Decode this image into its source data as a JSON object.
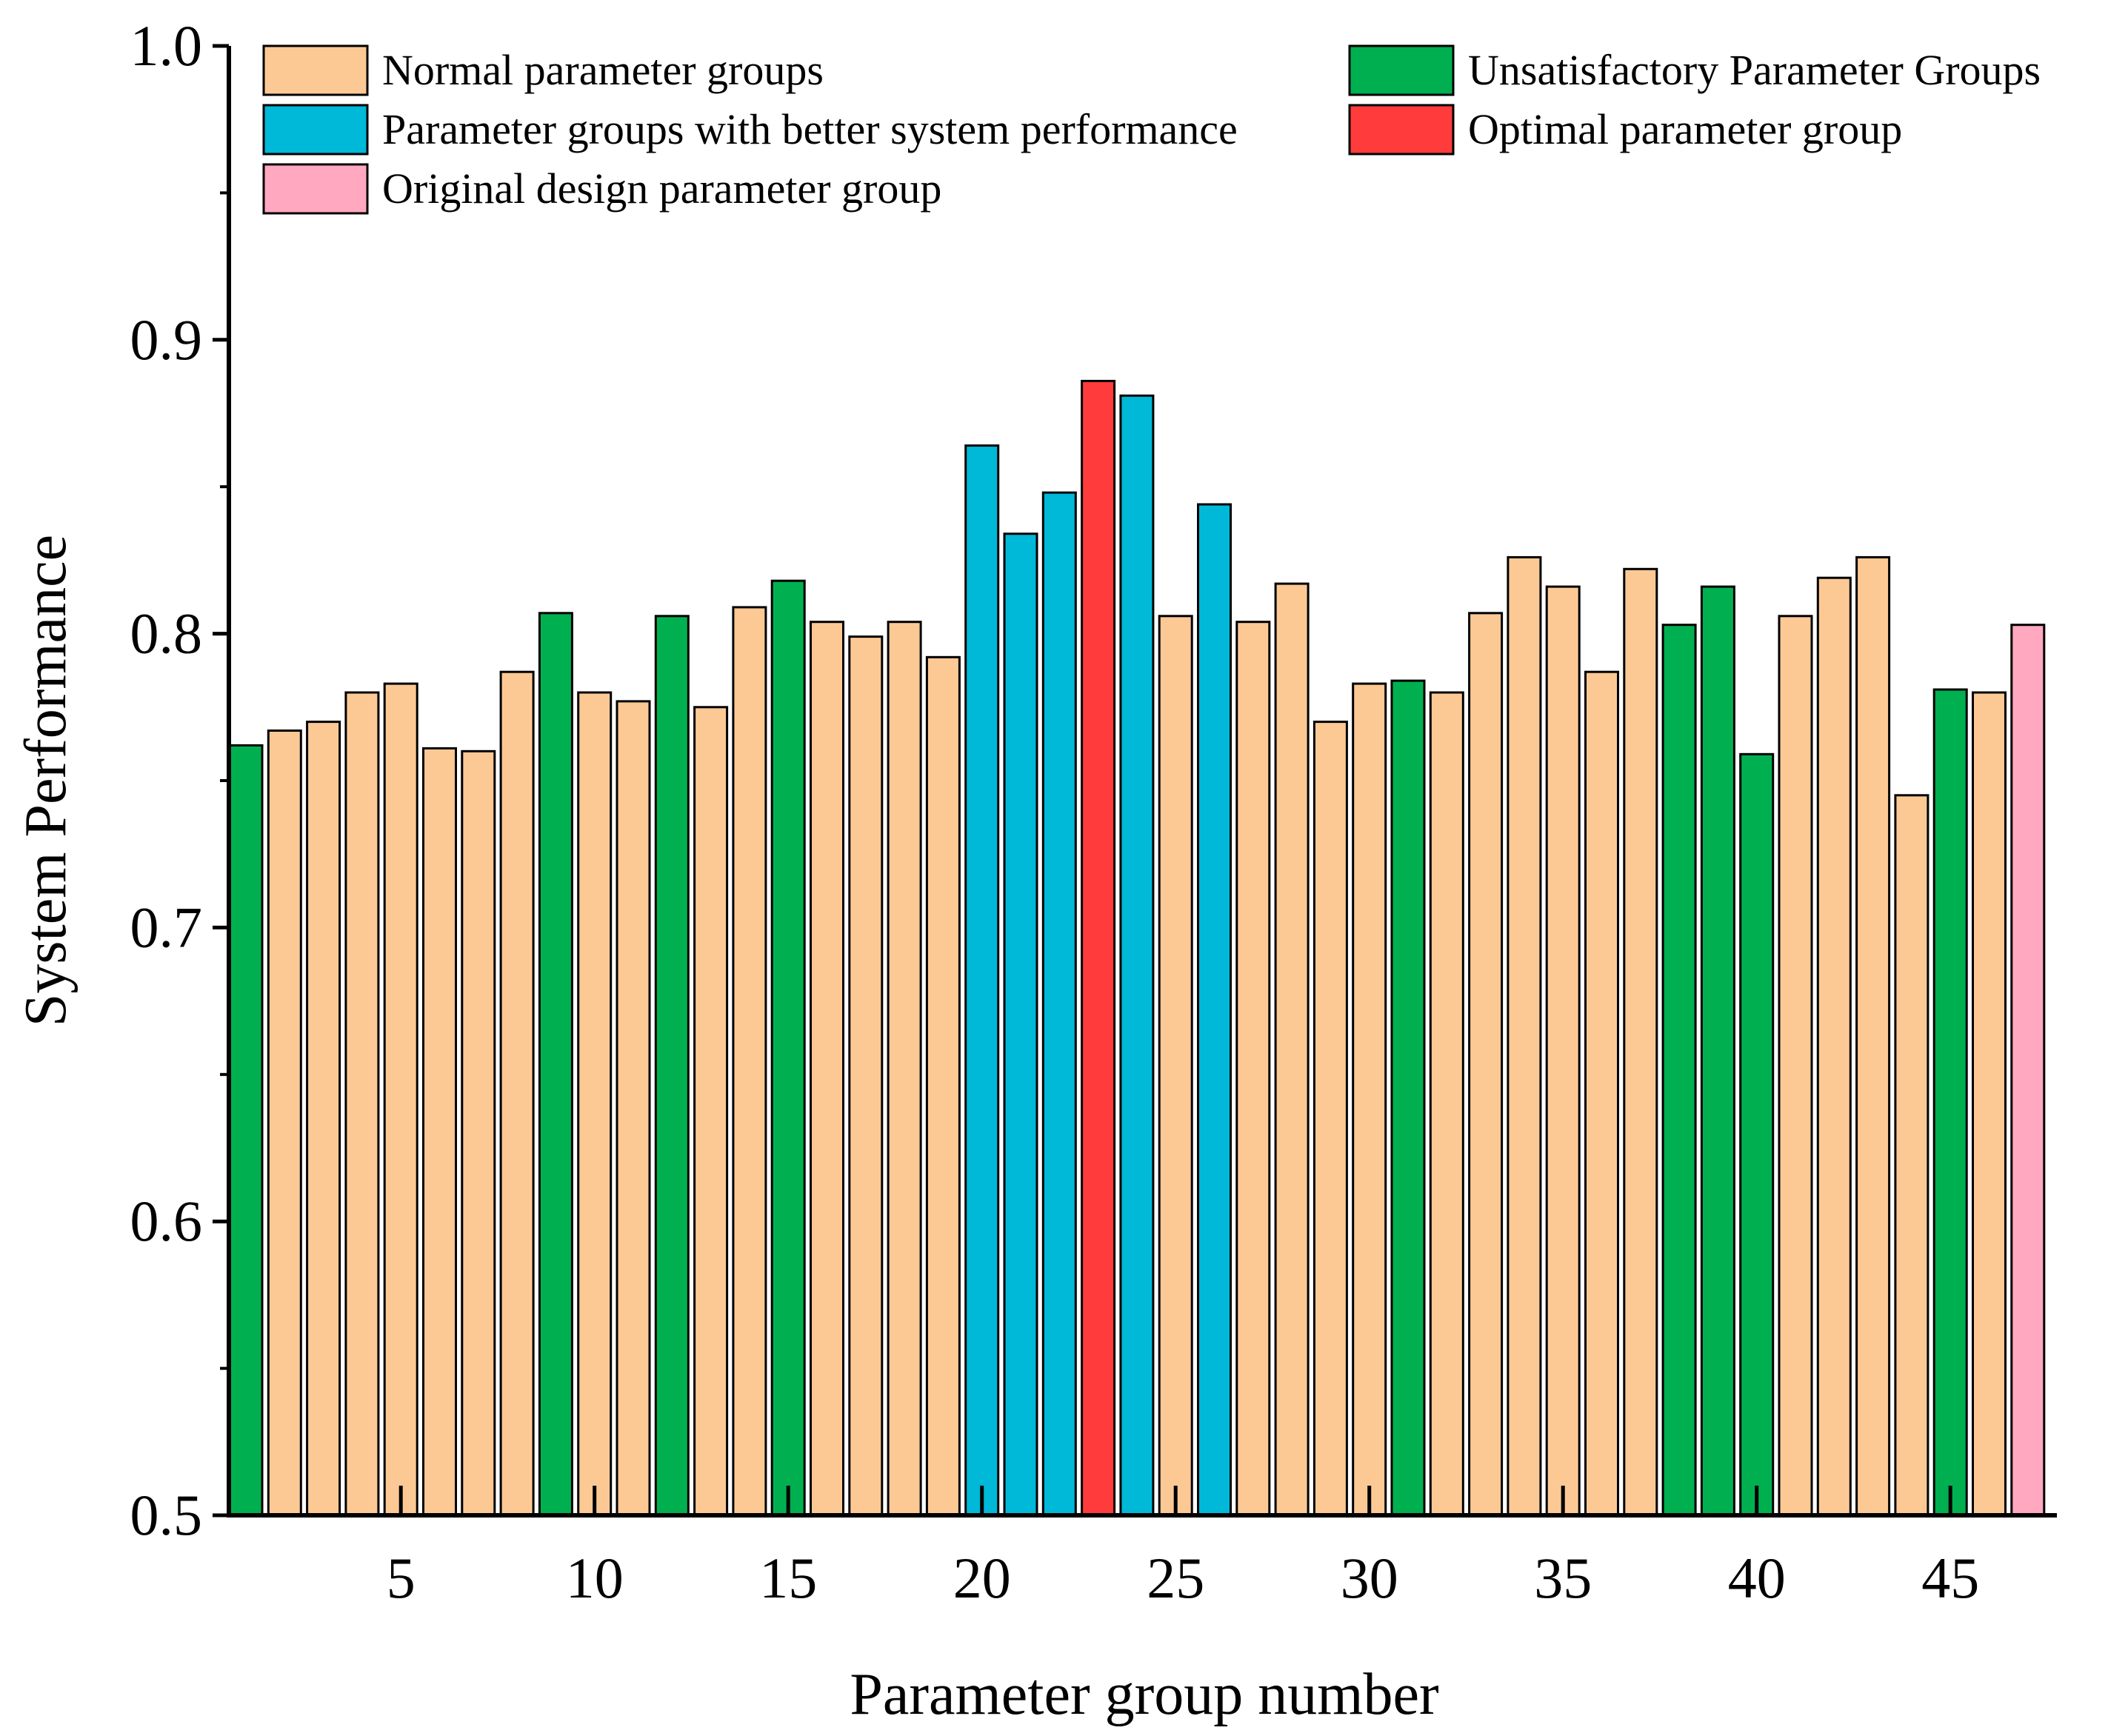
{
  "chart_data": {
    "type": "bar",
    "title": "",
    "xlabel": "Parameter group number",
    "ylabel": "System Performance",
    "ylim": [
      0.5,
      1.0
    ],
    "yticks": [
      0.5,
      0.6,
      0.7,
      0.8,
      0.9,
      1.0
    ],
    "ytick_labels": [
      "0.5",
      "0.6",
      "0.7",
      "0.8",
      "0.9",
      "1.0"
    ],
    "xticks": [
      5,
      10,
      15,
      20,
      25,
      30,
      35,
      40,
      45
    ],
    "xtick_labels": [
      "5",
      "10",
      "15",
      "20",
      "25",
      "30",
      "35",
      "40",
      "45"
    ],
    "categories": [
      1,
      2,
      3,
      4,
      5,
      6,
      7,
      8,
      9,
      10,
      11,
      12,
      13,
      14,
      15,
      16,
      17,
      18,
      19,
      20,
      21,
      22,
      23,
      24,
      25,
      26,
      27,
      28,
      29,
      30,
      31,
      32,
      33,
      34,
      35,
      36,
      37,
      38,
      39,
      40,
      41,
      42,
      43,
      44,
      45,
      46,
      47
    ],
    "values": [
      0.762,
      0.767,
      0.77,
      0.78,
      0.783,
      0.761,
      0.76,
      0.787,
      0.807,
      0.78,
      0.777,
      0.806,
      0.775,
      0.809,
      0.818,
      0.804,
      0.799,
      0.804,
      0.792,
      0.864,
      0.834,
      0.848,
      0.886,
      0.881,
      0.806,
      0.844,
      0.804,
      0.817,
      0.77,
      0.783,
      0.784,
      0.78,
      0.807,
      0.826,
      0.816,
      0.787,
      0.822,
      0.803,
      0.816,
      0.759,
      0.806,
      0.819,
      0.826,
      0.745,
      0.781,
      0.78,
      0.803
    ],
    "groups": [
      "unsatisfactory",
      "normal",
      "normal",
      "normal",
      "normal",
      "normal",
      "normal",
      "normal",
      "unsatisfactory",
      "normal",
      "normal",
      "unsatisfactory",
      "normal",
      "normal",
      "unsatisfactory",
      "normal",
      "normal",
      "normal",
      "normal",
      "better",
      "better",
      "better",
      "optimal",
      "better",
      "normal",
      "better",
      "normal",
      "normal",
      "normal",
      "normal",
      "unsatisfactory",
      "normal",
      "normal",
      "normal",
      "normal",
      "normal",
      "normal",
      "unsatisfactory",
      "unsatisfactory",
      "unsatisfactory",
      "normal",
      "normal",
      "normal",
      "normal",
      "unsatisfactory",
      "normal",
      "original"
    ],
    "legend": {
      "placement": "top",
      "entries": [
        {
          "key": "normal",
          "label": "Normal parameter groups",
          "color": "#FCC995"
        },
        {
          "key": "unsatisfactory",
          "label": "Unsatisfactory Parameter Groups",
          "color": "#00B050"
        },
        {
          "key": "better",
          "label": "Parameter groups with better system performance",
          "color": "#00B8D8"
        },
        {
          "key": "optimal",
          "label": "Optimal parameter group",
          "color": "#FF3B3B"
        },
        {
          "key": "original",
          "label": "Original design parameter group",
          "color": "#FFA8C0"
        }
      ]
    }
  }
}
